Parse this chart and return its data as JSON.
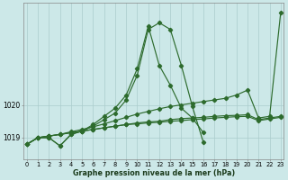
{
  "hours": [
    0,
    1,
    2,
    3,
    4,
    5,
    6,
    7,
    8,
    9,
    10,
    11,
    12,
    13,
    14,
    15,
    16,
    17,
    18,
    19,
    20,
    21,
    22,
    23
  ],
  "line_peak1": [
    1018.8,
    1019.0,
    1019.0,
    1018.75,
    1019.1,
    1019.2,
    1019.4,
    1019.65,
    1019.9,
    1020.3,
    1021.1,
    1022.4,
    1021.2,
    1020.6,
    1019.9,
    1019.6,
    1019.15,
    null,
    null,
    null,
    null,
    null,
    null,
    null
  ],
  "line_peak2": [
    1018.8,
    1019.0,
    1019.0,
    1018.75,
    1019.1,
    1019.2,
    1019.35,
    1019.55,
    1019.75,
    1020.15,
    1020.9,
    1022.3,
    1022.5,
    1022.3,
    1021.2,
    1019.95,
    1018.85,
    null,
    null,
    null,
    null,
    null,
    null,
    null
  ],
  "line_flat1": [
    1018.8,
    1019.0,
    1019.05,
    1019.1,
    1019.15,
    1019.2,
    1019.25,
    1019.3,
    1019.35,
    1019.4,
    1019.45,
    1019.48,
    1019.5,
    1019.55,
    1019.58,
    1019.6,
    1019.62,
    1019.65,
    1019.67,
    1019.68,
    1019.7,
    1019.55,
    1019.6,
    1019.65
  ],
  "line_flat2": [
    1018.8,
    1019.0,
    1019.05,
    1019.1,
    1019.15,
    1019.2,
    1019.25,
    1019.3,
    1019.35,
    1019.4,
    1019.42,
    1019.45,
    1019.47,
    1019.5,
    1019.52,
    1019.55,
    1019.57,
    1019.6,
    1019.62,
    1019.64,
    1019.65,
    1019.52,
    1019.57,
    1019.62
  ],
  "line_rising": [
    1018.8,
    1019.0,
    1019.05,
    1019.1,
    1019.18,
    1019.25,
    1019.33,
    1019.42,
    1019.52,
    1019.62,
    1019.72,
    1019.8,
    1019.88,
    1019.95,
    1020.0,
    1020.05,
    1020.1,
    1020.15,
    1020.2,
    1020.3,
    1020.45,
    1019.6,
    1019.65,
    1022.8
  ],
  "bg_color": "#cce8e8",
  "grid_color": "#aacccc",
  "line_color": "#2d6b2d",
  "xlabel": "Graphe pression niveau de la mer (hPa)",
  "ytick_vals": [
    1019,
    1020
  ],
  "ytick_labels": [
    "1019",
    "1020"
  ],
  "ylim": [
    1018.35,
    1023.1
  ],
  "xlim": [
    -0.3,
    23.3
  ],
  "xlabel_fontsize": 5.8,
  "tick_fontsize": 4.8,
  "ytick_fontsize": 5.5,
  "lw": 0.85,
  "ms": 2.2
}
